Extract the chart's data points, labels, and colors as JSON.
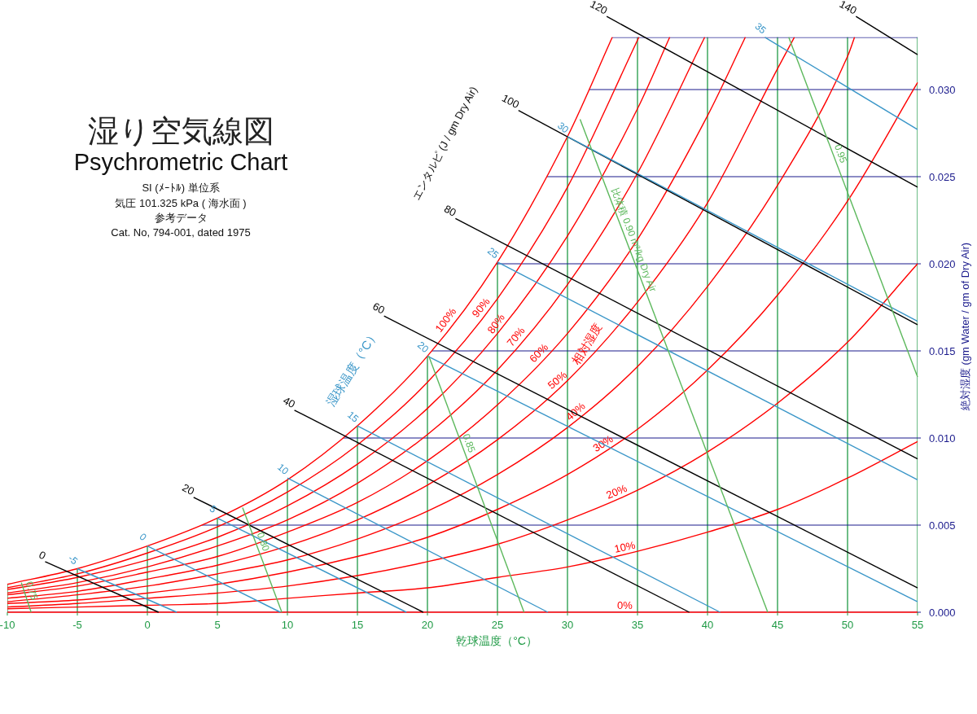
{
  "chart_data": {
    "type": "line",
    "title": "湿り空気線図",
    "subtitle": "Psychrometric Chart",
    "xlabel": "乾球温度（°C）",
    "ylabel": "絶対湿度 (gm Water / gm of Dry Air)",
    "annotations": [
      "SI (ﾒｰﾄﾙ) 単位系",
      "気圧 101.325 kPa ( 海水面 )",
      "参考データ",
      "Cat. No, 794-001, dated 1975",
      "相対湿度",
      "湿球温度（°C）",
      "エンタルピ (J / gm Dry Air)"
    ],
    "xlim": [
      -10,
      55
    ],
    "ylim": [
      0,
      0.035
    ],
    "xticks": [
      -10,
      -5,
      0,
      5,
      10,
      15,
      20,
      25,
      30,
      35,
      40,
      45,
      50,
      55
    ],
    "yticks": [
      {
        "value": 0,
        "label": "0.000"
      },
      {
        "value": 0.005,
        "label": "0.005"
      },
      {
        "value": 0.01,
        "label": "0.010"
      },
      {
        "value": 0.015,
        "label": "0.015"
      },
      {
        "value": 0.02,
        "label": "0.020"
      },
      {
        "value": 0.025,
        "label": "0.025"
      },
      {
        "value": 0.03,
        "label": "0.030"
      }
    ],
    "grid": true,
    "ref_lines": [
      {
        "axis": "y",
        "value": 0.033,
        "label": null,
        "color": "#1a1a8c"
      }
    ],
    "series": [
      {
        "name": "100%",
        "color": "#ff0000",
        "x": [
          -10,
          -5,
          0,
          5,
          10,
          15,
          20,
          25,
          30,
          33.2
        ],
        "values": [
          0.0016,
          0.0025,
          0.0038,
          0.0054,
          0.0076,
          0.0107,
          0.0147,
          0.0201,
          0.0273,
          0.033
        ]
      },
      {
        "name": "90%",
        "color": "#ff0000",
        "x": [
          -10,
          -5,
          0,
          5,
          10,
          15,
          20,
          25,
          30,
          35.1
        ],
        "values": [
          0.0014,
          0.0022,
          0.0034,
          0.0049,
          0.0069,
          0.0096,
          0.0132,
          0.018,
          0.0244,
          0.033
        ]
      },
      {
        "name": "80%",
        "color": "#ff0000",
        "x": [
          -10,
          -5,
          0,
          5,
          10,
          15,
          20,
          25,
          30,
          35,
          37.3
        ],
        "values": [
          0.0013,
          0.002,
          0.003,
          0.0043,
          0.0061,
          0.0085,
          0.0117,
          0.016,
          0.0216,
          0.0289,
          0.033
        ]
      },
      {
        "name": "70%",
        "color": "#ff0000",
        "x": [
          -10,
          -5,
          0,
          5,
          10,
          15,
          20,
          25,
          30,
          35,
          39.8
        ],
        "values": [
          0.0011,
          0.0017,
          0.0026,
          0.0038,
          0.0053,
          0.0074,
          0.0102,
          0.0139,
          0.0188,
          0.0252,
          0.033
        ]
      },
      {
        "name": "60%",
        "color": "#ff0000",
        "x": [
          -10,
          -5,
          0,
          5,
          10,
          15,
          20,
          25,
          30,
          35,
          40,
          42.7
        ],
        "values": [
          0.001,
          0.0015,
          0.0023,
          0.0032,
          0.0046,
          0.0063,
          0.0087,
          0.0119,
          0.016,
          0.0214,
          0.0285,
          0.033
        ]
      },
      {
        "name": "50%",
        "color": "#ff0000",
        "x": [
          -10,
          -5,
          0,
          5,
          10,
          15,
          20,
          25,
          30,
          35,
          40,
          45,
          46.2
        ],
        "values": [
          0.0008,
          0.0012,
          0.0019,
          0.0027,
          0.0038,
          0.0053,
          0.0073,
          0.0099,
          0.0133,
          0.0178,
          0.0235,
          0.0312,
          0.033
        ]
      },
      {
        "name": "40%",
        "color": "#ff0000",
        "x": [
          -10,
          -5,
          0,
          5,
          10,
          15,
          20,
          25,
          30,
          35,
          40,
          45,
          50,
          50.5
        ],
        "values": [
          0.0006,
          0.001,
          0.0015,
          0.0022,
          0.003,
          0.0042,
          0.0058,
          0.0079,
          0.0106,
          0.0141,
          0.0187,
          0.0245,
          0.0319,
          0.033
        ]
      },
      {
        "name": "30%",
        "color": "#ff0000",
        "x": [
          -10,
          -5,
          0,
          5,
          10,
          15,
          20,
          25,
          30,
          35,
          40,
          45,
          50,
          55
        ],
        "values": [
          0.0005,
          0.0007,
          0.0011,
          0.0016,
          0.0023,
          0.0032,
          0.0043,
          0.0059,
          0.0079,
          0.0105,
          0.0139,
          0.0182,
          0.0236,
          0.0304
        ]
      },
      {
        "name": "20%",
        "color": "#ff0000",
        "x": [
          -10,
          -5,
          0,
          5,
          10,
          15,
          20,
          25,
          30,
          35,
          40,
          45,
          50,
          55
        ],
        "values": [
          0.0003,
          0.0005,
          0.0008,
          0.0011,
          0.0015,
          0.0021,
          0.0029,
          0.0039,
          0.0053,
          0.007,
          0.0092,
          0.012,
          0.0155,
          0.02
        ]
      },
      {
        "name": "10%",
        "color": "#ff0000",
        "x": [
          -10,
          -5,
          0,
          5,
          10,
          15,
          20,
          25,
          30,
          35,
          40,
          45,
          50,
          55
        ],
        "values": [
          0.0002,
          0.0003,
          0.0004,
          0.0005,
          0.0008,
          0.0011,
          0.0014,
          0.002,
          0.0026,
          0.0035,
          0.0046,
          0.0059,
          0.0077,
          0.0098
        ]
      },
      {
        "name": "0%",
        "color": "#ff0000",
        "x": [
          -10,
          55
        ],
        "values": [
          0,
          0
        ]
      },
      {
        "name": "0",
        "color": "#000000",
        "x": [
          -7.3,
          0.8
        ],
        "values": [
          0.0029,
          0
        ]
      },
      {
        "name": "20",
        "color": "#000000",
        "x": [
          3.3,
          19.7
        ],
        "values": [
          0.0066,
          0
        ]
      },
      {
        "name": "40",
        "color": "#000000",
        "x": [
          10.5,
          38.7
        ],
        "values": [
          0.0116,
          0
        ]
      },
      {
        "name": "60",
        "color": "#000000",
        "x": [
          16.9,
          55
        ],
        "values": [
          0.017,
          0.0014
        ]
      },
      {
        "name": "80",
        "color": "#000000",
        "x": [
          22,
          55
        ],
        "values": [
          0.0226,
          0.0088
        ]
      },
      {
        "name": "100",
        "color": "#000000",
        "x": [
          26.5,
          55
        ],
        "values": [
          0.0288,
          0.0165
        ]
      },
      {
        "name": "120",
        "color": "#000000",
        "x": [
          32.8,
          55
        ],
        "values": [
          0.0342,
          0.0244
        ]
      },
      {
        "name": "140",
        "color": "#000000",
        "x": [
          50.6,
          55
        ],
        "values": [
          0.0342,
          0.032
        ]
      },
      {
        "name": "-5",
        "color": "#3a96c8",
        "x": [
          -5,
          2.1
        ],
        "values": [
          0.0025,
          0
        ]
      },
      {
        "name": "0",
        "color": "#3a96c8",
        "x": [
          0,
          9.5
        ],
        "values": [
          0.0038,
          0
        ]
      },
      {
        "name": "5",
        "color": "#3a96c8",
        "x": [
          5,
          18.5
        ],
        "values": [
          0.0054,
          0
        ]
      },
      {
        "name": "10",
        "color": "#3a96c8",
        "x": [
          10,
          28.6
        ],
        "values": [
          0.0077,
          0
        ]
      },
      {
        "name": "15",
        "color": "#3a96c8",
        "x": [
          15,
          40.9
        ],
        "values": [
          0.0107,
          0
        ]
      },
      {
        "name": "20",
        "color": "#3a96c8",
        "x": [
          20,
          55
        ],
        "values": [
          0.0147,
          0.0006
        ]
      },
      {
        "name": "25",
        "color": "#3a96c8",
        "x": [
          25,
          55
        ],
        "values": [
          0.0201,
          0.0076
        ]
      },
      {
        "name": "30",
        "color": "#3a96c8",
        "x": [
          30,
          55
        ],
        "values": [
          0.0273,
          0.0167
        ]
      },
      {
        "name": "35",
        "color": "#3a96c8",
        "x": [
          44.1,
          55
        ],
        "values": [
          0.033,
          0.0277
        ]
      },
      {
        "name": "0.75",
        "color": "#5cb85c",
        "x": [
          -9,
          -8.3
        ],
        "values": [
          0.0017,
          0
        ]
      },
      {
        "name": "0.80",
        "color": "#5cb85c",
        "x": [
          6.8,
          9.6
        ],
        "values": [
          0.006,
          0
        ]
      },
      {
        "name": "0.85",
        "color": "#5cb85c",
        "x": [
          20.1,
          26.9
        ],
        "values": [
          0.0147,
          0
        ]
      },
      {
        "name": "比体積 0.90 m³/kg Dry Air",
        "color": "#5cb85c",
        "x": [
          30.9,
          44.3
        ],
        "values": [
          0.0283,
          0
        ]
      },
      {
        "name": "0.95",
        "color": "#5cb85c",
        "x": [
          45.8,
          55
        ],
        "values": [
          0.033,
          0.0135
        ]
      }
    ]
  }
}
